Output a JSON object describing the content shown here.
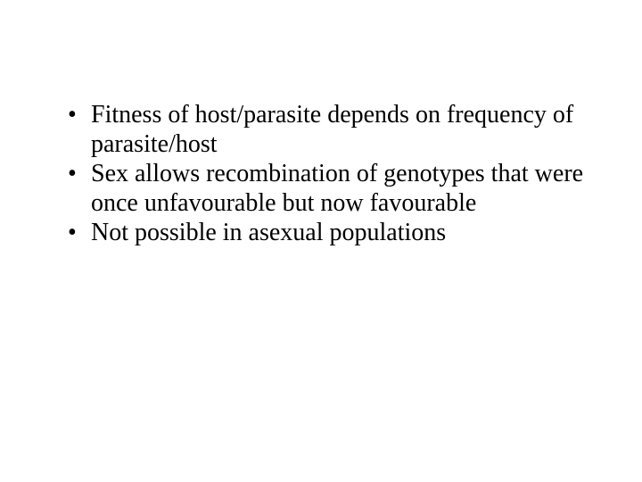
{
  "slide": {
    "background_color": "#ffffff",
    "text_color": "#000000",
    "font_family": "Times New Roman",
    "font_size_pt": 21,
    "bullets": [
      {
        "text": "Fitness of host/parasite depends on frequency of parasite/host"
      },
      {
        "text": "Sex allows recombination of genotypes that were once unfavourable but now favourable"
      },
      {
        "text": "Not possible in asexual populations"
      }
    ]
  }
}
